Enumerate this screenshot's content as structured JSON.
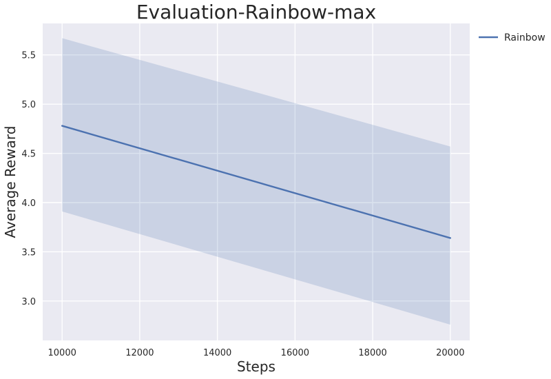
{
  "chart_data": {
    "type": "line",
    "title": "Evaluation-Rainbow-max",
    "xlabel": "Steps",
    "ylabel": "Average Reward",
    "xlim": [
      9500,
      20500
    ],
    "ylim": [
      2.6,
      5.82
    ],
    "x_ticks": [
      10000,
      12000,
      14000,
      16000,
      18000,
      20000
    ],
    "y_ticks": [
      3.0,
      3.5,
      4.0,
      4.5,
      5.0,
      5.5
    ],
    "x_tick_labels": [
      "10000",
      "12000",
      "14000",
      "16000",
      "18000",
      "20000"
    ],
    "y_tick_labels": [
      "3.0",
      "3.5",
      "4.0",
      "4.5",
      "5.0",
      "5.5"
    ],
    "grid": true,
    "legend_position": "outside-top-right",
    "series": [
      {
        "name": "Rainbow",
        "color": "#4c72b0",
        "x": [
          10000,
          20000
        ],
        "y": [
          4.78,
          3.64
        ],
        "band_lower": [
          3.91,
          2.76
        ],
        "band_upper": [
          5.67,
          4.57
        ]
      }
    ]
  },
  "colors": {
    "plot_background": "#eaeaf2",
    "grid": "#ffffff",
    "band_fill": "#4c72b0"
  }
}
